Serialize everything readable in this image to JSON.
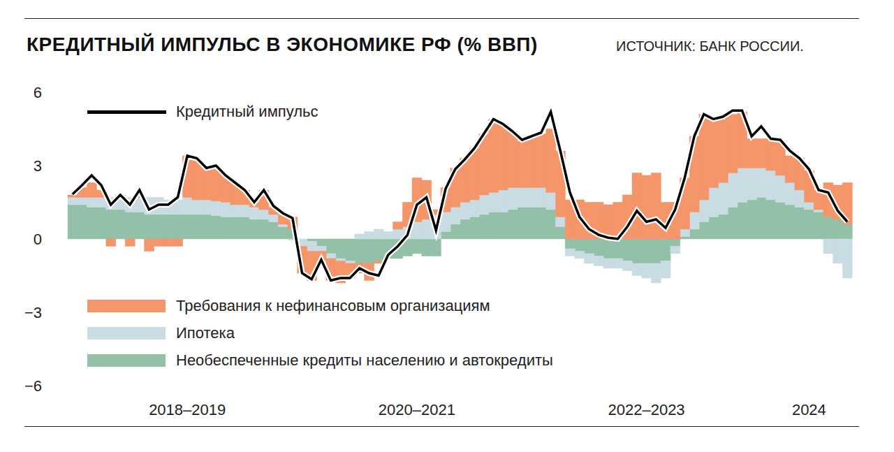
{
  "chart_data": {
    "type": "bar",
    "title": "КРЕДИТНЫЙ ИМПУЛЬС В ЭКОНОМИКЕ РФ (% ВВП)",
    "subtitle": "ИСТОЧНИК: БАНК РОССИИ.",
    "categories": [
      null,
      null,
      null,
      null,
      null,
      null,
      null,
      null,
      null,
      null,
      null,
      null,
      "2018–2019",
      null,
      null,
      null,
      null,
      null,
      null,
      null,
      null,
      null,
      null,
      null,
      null,
      null,
      null,
      null,
      null,
      null,
      null,
      null,
      null,
      null,
      null,
      null,
      "2020–2021",
      null,
      null,
      null,
      null,
      null,
      null,
      null,
      null,
      null,
      null,
      null,
      null,
      null,
      null,
      null,
      null,
      null,
      null,
      null,
      null,
      null,
      null,
      null,
      "2022–2023",
      null,
      null,
      null,
      null,
      null,
      null,
      null,
      null,
      null,
      null,
      null,
      null,
      null,
      null,
      null,
      null,
      "2024",
      null,
      null,
      null,
      null
    ],
    "series": [
      {
        "name": "Требования к нефинансовым организациям",
        "color": "#f4956a",
        "type": "bar",
        "values": [
          0.1,
          0.4,
          0.6,
          0.3,
          -0.3,
          0.1,
          -0.3,
          0.1,
          -0.5,
          -0.3,
          -0.3,
          -0.3,
          1.7,
          1.6,
          1.3,
          1.4,
          1.1,
          0.9,
          0.6,
          0.2,
          0.8,
          0.3,
          0.4,
          0.5,
          -1.1,
          -1.2,
          -0.4,
          -0.9,
          -0.9,
          -0.6,
          -0.4,
          -0.7,
          -0.1,
          0.0,
          0.3,
          1.0,
          1.8,
          1.6,
          0.2,
          1.0,
          1.6,
          1.8,
          2.1,
          2.5,
          3.0,
          2.7,
          2.3,
          1.9,
          2.1,
          2.2,
          2.6,
          2.7,
          1.6,
          1.6,
          1.5,
          1.5,
          1.4,
          1.5,
          1.8,
          2.7,
          2.6,
          2.7,
          1.5,
          1.5,
          2.1,
          3.1,
          3.5,
          2.8,
          2.7,
          2.4,
          2.3,
          1.2,
          1.2,
          1.3,
          1.4,
          1.1,
          1.3,
          1.3,
          0.8,
          1.4,
          1.4,
          1.7
        ]
      },
      {
        "name": "Ипотека",
        "color": "#c9dce3",
        "type": "bar",
        "values": [
          0.3,
          0.3,
          0.4,
          0.4,
          0.5,
          0.5,
          0.6,
          0.6,
          0.7,
          0.7,
          0.6,
          0.6,
          0.7,
          0.6,
          0.6,
          0.6,
          0.6,
          0.5,
          0.5,
          0.5,
          0.4,
          0.3,
          0.1,
          -0.05,
          -0.3,
          -0.4,
          -0.2,
          -0.2,
          -0.1,
          -0.1,
          0.2,
          0.3,
          0.4,
          0.3,
          0.4,
          0.5,
          0.7,
          0.8,
          1.0,
          0.8,
          0.7,
          0.7,
          0.7,
          0.8,
          0.8,
          0.9,
          0.9,
          0.8,
          0.8,
          0.8,
          0.7,
          0.4,
          -0.3,
          -0.3,
          -0.4,
          -0.4,
          -0.4,
          -0.4,
          -0.4,
          -0.5,
          -0.6,
          -0.8,
          -0.7,
          -0.3,
          0.3,
          0.7,
          0.9,
          1.2,
          1.3,
          1.4,
          1.4,
          1.3,
          1.2,
          1.2,
          1.1,
          0.9,
          0.7,
          0.3,
          0.1,
          -0.6,
          -1.0,
          -1.6
        ]
      },
      {
        "name": "Необеспеченные кредиты населению и автокредиты",
        "color": "#93c1a8",
        "type": "bar",
        "values": [
          1.4,
          1.4,
          1.3,
          1.3,
          1.2,
          1.2,
          1.1,
          1.1,
          1.0,
          1.0,
          1.0,
          1.0,
          1.0,
          1.0,
          1.0,
          0.95,
          0.9,
          0.9,
          0.9,
          0.8,
          0.8,
          0.7,
          0.5,
          0.4,
          0.0,
          -0.1,
          -0.3,
          -0.6,
          -0.8,
          -0.9,
          -1.0,
          -1.0,
          -0.9,
          -0.8,
          -0.8,
          -0.7,
          -0.6,
          -0.7,
          -0.7,
          0.3,
          0.6,
          0.8,
          0.9,
          1.0,
          1.1,
          1.1,
          1.2,
          1.3,
          1.3,
          1.3,
          1.2,
          0.5,
          -0.4,
          -0.5,
          -0.6,
          -0.7,
          -0.8,
          -0.8,
          -0.9,
          -1.0,
          -1.0,
          -1.0,
          -0.9,
          -0.3,
          0.1,
          0.4,
          0.7,
          0.9,
          1.0,
          1.3,
          1.5,
          1.6,
          1.7,
          1.6,
          1.5,
          1.4,
          1.3,
          1.2,
          1.1,
          0.9,
          0.8,
          0.6
        ]
      },
      {
        "name": "Кредитный импульс",
        "color": "#000000",
        "type": "line",
        "values": [
          1.83,
          2.2,
          2.6,
          2.2,
          1.4,
          1.8,
          1.4,
          2.0,
          1.2,
          1.4,
          1.4,
          1.7,
          3.4,
          3.3,
          2.9,
          3.0,
          2.6,
          2.3,
          2.0,
          1.5,
          2.0,
          1.35,
          1.05,
          0.85,
          -1.4,
          -1.65,
          -0.85,
          -1.7,
          -1.6,
          -1.6,
          -1.2,
          -1.4,
          -1.5,
          -0.65,
          -0.3,
          0.15,
          1.4,
          1.7,
          0.35,
          2.05,
          2.85,
          3.25,
          3.7,
          4.3,
          4.9,
          4.7,
          4.4,
          4.05,
          4.2,
          4.35,
          5.2,
          3.6,
          1.9,
          0.9,
          0.4,
          0.17,
          0.05,
          0.0,
          0.5,
          1.15,
          0.7,
          0.8,
          0.45,
          1.2,
          2.5,
          4.2,
          5.1,
          4.9,
          5.0,
          5.25,
          5.25,
          4.2,
          4.6,
          4.1,
          4.05,
          3.6,
          3.3,
          2.85,
          2.0,
          1.9,
          1.15,
          0.7
        ]
      }
    ],
    "ylim": [
      -6,
      6
    ],
    "yticks": [
      {
        "value": -6,
        "label": "−6"
      },
      {
        "value": -3,
        "label": "−3"
      },
      0,
      3,
      6
    ],
    "stacked": true,
    "grid": false,
    "legend": "left"
  }
}
